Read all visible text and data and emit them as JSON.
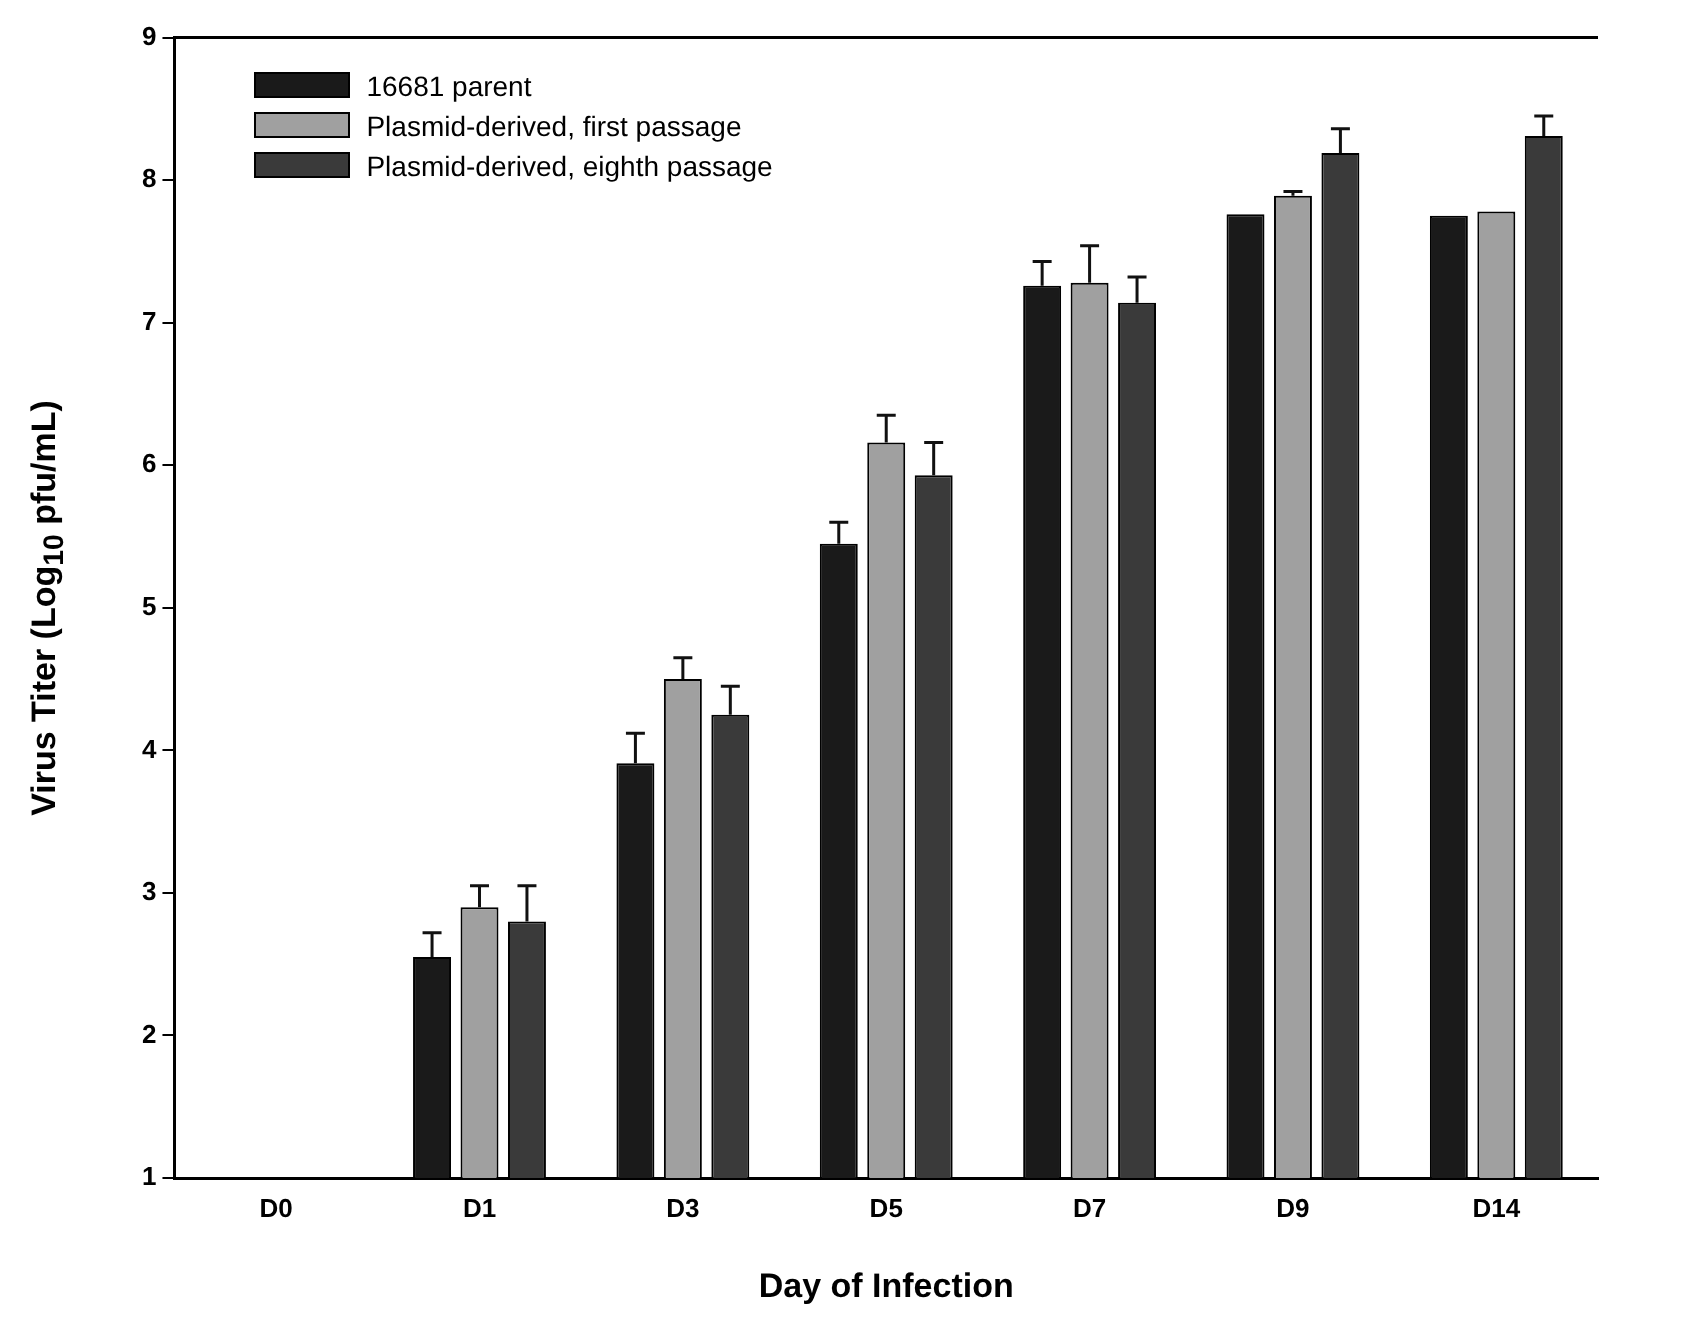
{
  "chart_data": {
    "type": "bar",
    "xlabel": "Day of Infection",
    "ylabel": "Virus Titer (Log$_{10}$ pfu/mL)",
    "categories": [
      "D0",
      "D1",
      "D3",
      "D5",
      "D7",
      "D9",
      "D14"
    ],
    "series": [
      {
        "name": "16681 parent",
        "color": "#1a1a1a",
        "values": [
          null,
          2.55,
          3.91,
          5.45,
          7.26,
          7.76,
          7.75
        ],
        "errors": [
          null,
          [
            2.55,
            2.72
          ],
          [
            3.91,
            4.12
          ],
          [
            5.45,
            5.6
          ],
          [
            7.26,
            7.43
          ],
          null,
          null
        ]
      },
      {
        "name": "Plasmid-derived, first passage",
        "color": "#a0a0a0",
        "values": [
          null,
          2.9,
          4.5,
          6.16,
          7.28,
          7.89,
          7.78
        ],
        "errors": [
          null,
          [
            2.9,
            3.05
          ],
          [
            4.5,
            4.65
          ],
          [
            6.16,
            6.35
          ],
          [
            7.28,
            7.54
          ],
          [
            7.89,
            7.92
          ],
          null
        ]
      },
      {
        "name": "Plasmid-derived, eighth passage",
        "color": "#3a3a3a",
        "values": [
          null,
          2.8,
          4.25,
          5.93,
          7.14,
          8.19,
          8.31
        ],
        "errors": [
          null,
          [
            2.8,
            3.05
          ],
          [
            4.25,
            4.45
          ],
          [
            5.93,
            6.16
          ],
          [
            7.14,
            7.32
          ],
          [
            8.19,
            8.36
          ],
          [
            8.31,
            8.45
          ]
        ]
      }
    ],
    "ylim": [
      1,
      9
    ],
    "yticks": [
      1,
      2,
      3,
      4,
      5,
      6,
      7,
      8,
      9
    ],
    "grid": false,
    "legend": "top left"
  }
}
